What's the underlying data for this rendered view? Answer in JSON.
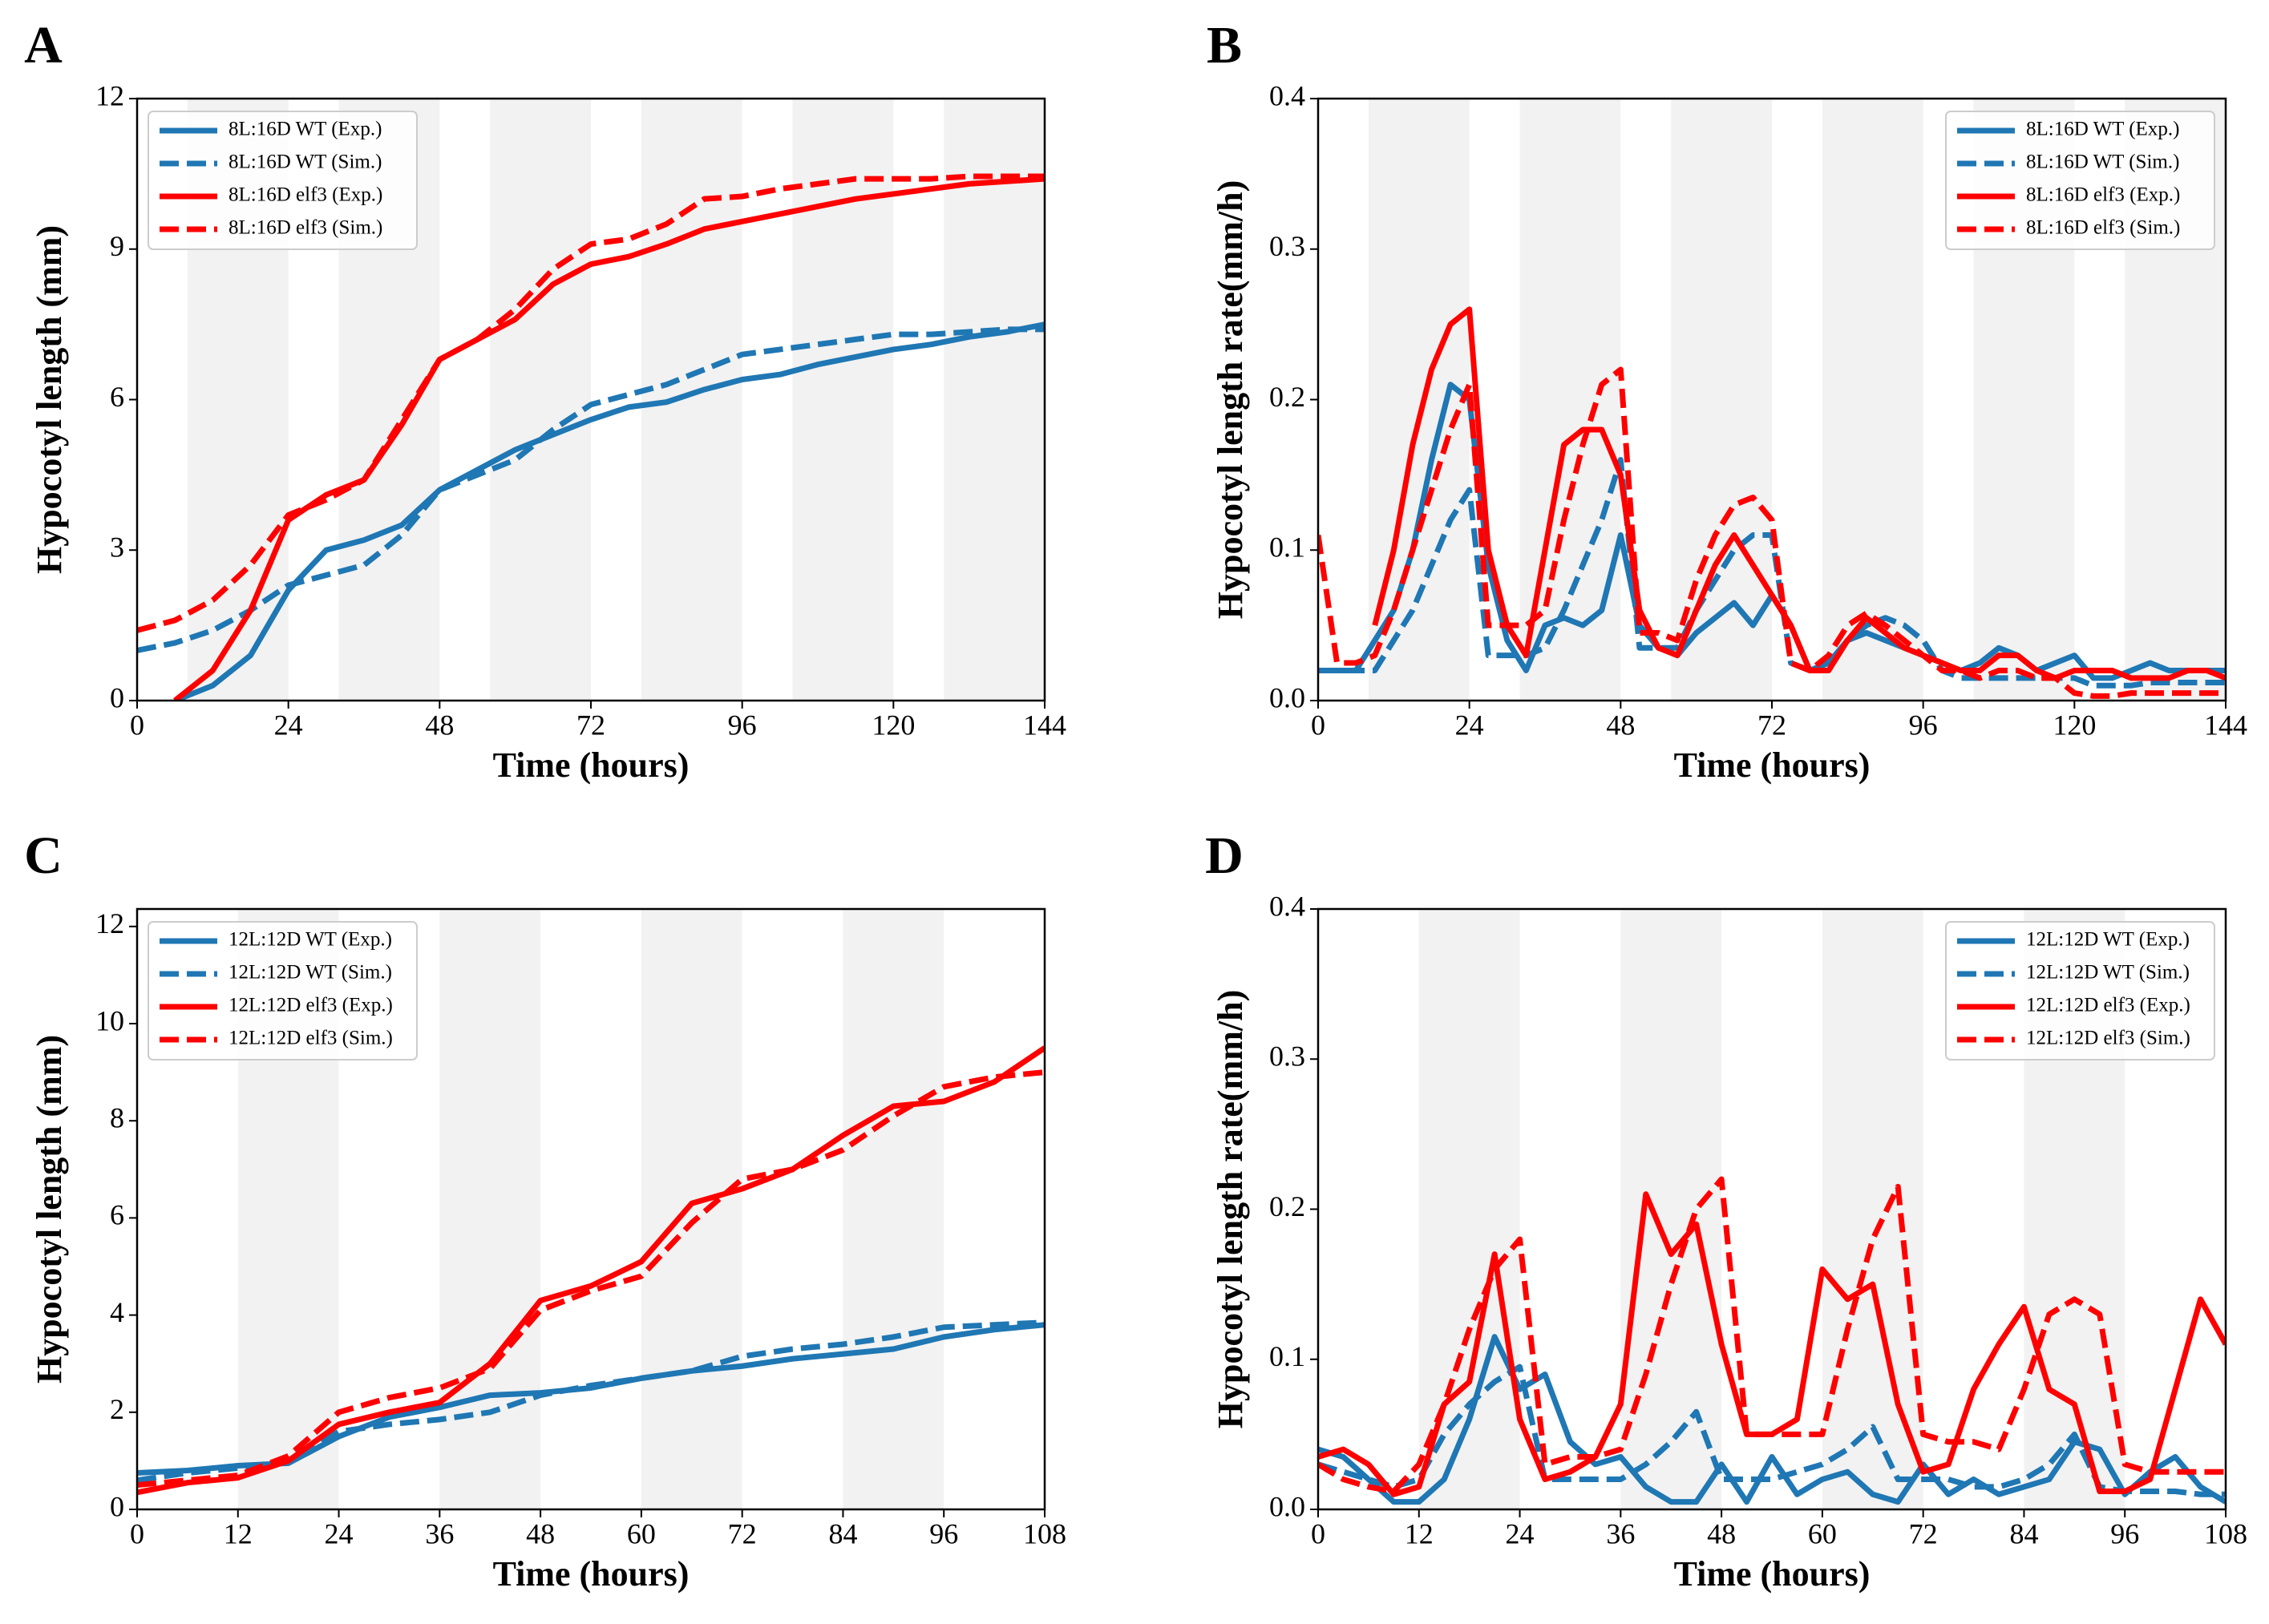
{
  "chart_data": [
    {
      "type": "line",
      "title": "A",
      "xlabel": "Time (hours)",
      "ylabel": "Hypocotyl length (mm)",
      "xlim": [
        0,
        144
      ],
      "xticks": [
        0,
        24,
        48,
        72,
        96,
        120,
        144
      ],
      "ylim": [
        0,
        12
      ],
      "yticks": [
        0,
        3,
        6,
        9,
        12
      ],
      "shaded": [
        [
          8,
          24
        ],
        [
          32,
          48
        ],
        [
          56,
          72
        ],
        [
          80,
          96
        ],
        [
          104,
          120
        ],
        [
          128,
          144
        ]
      ],
      "legend": "upper left",
      "x": [
        0,
        6,
        12,
        18,
        24,
        30,
        36,
        42,
        48,
        54,
        60,
        66,
        72,
        78,
        84,
        90,
        96,
        102,
        108,
        114,
        120,
        126,
        132,
        138,
        144
      ],
      "series": [
        {
          "name": "8L:16D WT (Exp.)",
          "color": "#1f77b4",
          "dashed": false,
          "values": [
            null,
            0.0,
            0.3,
            0.9,
            2.2,
            3.0,
            3.2,
            3.5,
            4.2,
            4.6,
            5.0,
            5.3,
            5.6,
            5.85,
            5.95,
            6.2,
            6.4,
            6.5,
            6.7,
            6.85,
            7.0,
            7.1,
            7.25,
            7.35,
            7.5
          ]
        },
        {
          "name": "8L:16D WT (Sim.)",
          "color": "#1f77b4",
          "dashed": true,
          "values": [
            1.0,
            1.15,
            1.4,
            1.8,
            2.3,
            2.5,
            2.7,
            3.3,
            4.2,
            4.5,
            4.8,
            5.4,
            5.9,
            6.1,
            6.3,
            6.6,
            6.9,
            7.0,
            7.1,
            7.2,
            7.3,
            7.3,
            7.35,
            7.4,
            7.4
          ]
        },
        {
          "name": "8L:16D elf3 (Exp.)",
          "color": "#ff0000",
          "dashed": false,
          "values": [
            null,
            0.0,
            0.6,
            1.8,
            3.6,
            4.1,
            4.4,
            5.5,
            6.8,
            7.2,
            7.6,
            8.3,
            8.7,
            8.85,
            9.1,
            9.4,
            9.55,
            9.7,
            9.85,
            10.0,
            10.1,
            10.2,
            10.3,
            10.35,
            10.4
          ]
        },
        {
          "name": "8L:16D elf3 (Sim.)",
          "color": "#ff0000",
          "dashed": true,
          "values": [
            1.4,
            1.6,
            2.0,
            2.7,
            3.7,
            4.0,
            4.4,
            5.6,
            6.8,
            7.2,
            7.8,
            8.6,
            9.1,
            9.2,
            9.5,
            10.0,
            10.05,
            10.2,
            10.3,
            10.4,
            10.4,
            10.4,
            10.45,
            10.45,
            10.45
          ]
        }
      ]
    },
    {
      "type": "line",
      "title": "B",
      "xlabel": "Time (hours)",
      "ylabel": "Hypocotyl length rate(mm/h)",
      "xlim": [
        0,
        144
      ],
      "xticks": [
        0,
        24,
        48,
        72,
        96,
        120,
        144
      ],
      "ylim": [
        0,
        0.4
      ],
      "yticks": [
        {
          "value": 0,
          "label": "0.0"
        },
        0.1,
        0.2,
        0.3,
        0.4
      ],
      "shaded": [
        [
          8,
          24
        ],
        [
          32,
          48
        ],
        [
          56,
          72
        ],
        [
          80,
          96
        ],
        [
          104,
          120
        ],
        [
          128,
          144
        ]
      ],
      "legend": "upper right",
      "x": [
        0,
        3,
        6,
        9,
        12,
        15,
        18,
        21,
        24,
        27,
        30,
        33,
        36,
        39,
        42,
        45,
        48,
        51,
        54,
        57,
        60,
        63,
        66,
        69,
        72,
        75,
        78,
        81,
        84,
        87,
        90,
        93,
        96,
        99,
        102,
        105,
        108,
        111,
        114,
        117,
        120,
        123,
        126,
        129,
        132,
        135,
        138,
        141,
        144
      ],
      "series": [
        {
          "name": "8L:16D WT (Exp.)",
          "color": "#1f77b4",
          "dashed": false,
          "values": [
            0.02,
            0.02,
            0.02,
            0.04,
            0.06,
            0.1,
            0.16,
            0.21,
            0.2,
            0.09,
            0.04,
            0.02,
            0.05,
            0.055,
            0.05,
            0.06,
            0.11,
            0.05,
            0.035,
            0.03,
            0.045,
            0.055,
            0.065,
            0.05,
            0.07,
            0.05,
            0.02,
            0.025,
            0.04,
            0.045,
            0.04,
            0.035,
            0.03,
            0.025,
            0.02,
            0.025,
            0.035,
            0.03,
            0.02,
            0.025,
            0.03,
            0.015,
            0.015,
            0.02,
            0.025,
            0.02,
            0.02,
            0.02,
            0.02
          ]
        },
        {
          "name": "8L:16D WT (Sim.)",
          "color": "#1f77b4",
          "dashed": true,
          "values": [
            0.02,
            0.02,
            0.02,
            0.02,
            0.04,
            0.06,
            0.09,
            0.12,
            0.14,
            0.03,
            0.03,
            0.03,
            0.035,
            0.06,
            0.09,
            0.12,
            0.16,
            0.035,
            0.035,
            0.035,
            0.06,
            0.08,
            0.1,
            0.11,
            0.11,
            0.025,
            0.02,
            0.025,
            0.04,
            0.05,
            0.055,
            0.05,
            0.04,
            0.02,
            0.015,
            0.015,
            0.015,
            0.015,
            0.015,
            0.015,
            0.015,
            0.01,
            0.01,
            0.01,
            0.012,
            0.012,
            0.012,
            0.012,
            0.012
          ]
        },
        {
          "name": "8L:16D elf3 (Exp.)",
          "color": "#ff0000",
          "dashed": false,
          "values": [
            null,
            null,
            null,
            0.05,
            0.1,
            0.17,
            0.22,
            0.25,
            0.26,
            0.1,
            0.05,
            0.03,
            0.1,
            0.17,
            0.18,
            0.18,
            0.15,
            0.06,
            0.035,
            0.03,
            0.06,
            0.09,
            0.11,
            0.09,
            0.07,
            0.05,
            0.02,
            0.02,
            0.04,
            0.055,
            0.045,
            0.035,
            0.03,
            0.025,
            0.02,
            0.02,
            0.03,
            0.03,
            0.02,
            0.015,
            0.02,
            0.02,
            0.02,
            0.015,
            0.015,
            0.015,
            0.02,
            0.02,
            0.015
          ]
        },
        {
          "name": "8L:16D elf3 (Sim.)",
          "color": "#ff0000",
          "dashed": true,
          "values": [
            0.11,
            0.025,
            0.025,
            0.03,
            0.06,
            0.1,
            0.14,
            0.18,
            0.21,
            0.05,
            0.05,
            0.05,
            0.06,
            0.12,
            0.17,
            0.21,
            0.22,
            0.045,
            0.045,
            0.04,
            0.08,
            0.11,
            0.13,
            0.135,
            0.12,
            0.025,
            0.02,
            0.03,
            0.05,
            0.058,
            0.05,
            0.04,
            0.03,
            0.02,
            0.02,
            0.015,
            0.02,
            0.02,
            0.015,
            0.015,
            0.005,
            0.003,
            0.003,
            0.005,
            0.005,
            0.005,
            0.005,
            0.005,
            0.005
          ]
        }
      ]
    },
    {
      "type": "line",
      "title": "C",
      "xlabel": "Time (hours)",
      "ylabel": "Hypocotyl length (mm)",
      "xlim": [
        0,
        108
      ],
      "xticks": [
        0,
        12,
        24,
        36,
        48,
        60,
        72,
        84,
        96,
        108
      ],
      "ylim": [
        0,
        12.36
      ],
      "yticks": [
        0,
        2,
        4,
        6,
        8,
        10,
        12
      ],
      "shaded": [
        [
          12,
          24
        ],
        [
          36,
          48
        ],
        [
          60,
          72
        ],
        [
          84,
          96
        ]
      ],
      "legend": "upper left",
      "x": [
        0,
        6,
        12,
        18,
        24,
        30,
        36,
        42,
        48,
        54,
        60,
        66,
        72,
        78,
        84,
        90,
        96,
        102,
        108
      ],
      "series": [
        {
          "name": "12L:12D WT (Exp.)",
          "color": "#1f77b4",
          "dashed": false,
          "values": [
            0.75,
            0.8,
            0.9,
            0.95,
            1.5,
            1.9,
            2.1,
            2.35,
            2.4,
            2.5,
            2.7,
            2.85,
            2.95,
            3.1,
            3.2,
            3.3,
            3.55,
            3.7,
            3.8
          ]
        },
        {
          "name": "12L:12D WT (Sim.)",
          "color": "#1f77b4",
          "dashed": true,
          "values": [
            0.6,
            0.75,
            0.85,
            1.0,
            1.6,
            1.75,
            1.85,
            2.0,
            2.35,
            2.55,
            2.7,
            2.85,
            3.15,
            3.3,
            3.4,
            3.55,
            3.75,
            3.8,
            3.85
          ]
        },
        {
          "name": "12L:12D elf3 (Exp.)",
          "color": "#ff0000",
          "dashed": false,
          "values": [
            0.35,
            0.55,
            0.65,
            1.0,
            1.75,
            2.0,
            2.2,
            3.0,
            4.3,
            4.6,
            5.1,
            6.3,
            6.6,
            7.0,
            7.7,
            8.3,
            8.4,
            8.8,
            9.5
          ]
        },
        {
          "name": "12L:12D elf3 (Sim.)",
          "color": "#ff0000",
          "dashed": true,
          "values": [
            0.5,
            0.6,
            0.7,
            1.1,
            2.0,
            2.3,
            2.5,
            2.9,
            4.1,
            4.5,
            4.8,
            5.9,
            6.8,
            7.0,
            7.4,
            8.1,
            8.7,
            8.9,
            9.0
          ]
        }
      ]
    },
    {
      "type": "line",
      "title": "D",
      "xlabel": "Time (hours)",
      "ylabel": "Hypocotyl length rate(mm/h)",
      "xlim": [
        0,
        108
      ],
      "xticks": [
        0,
        12,
        24,
        36,
        48,
        60,
        72,
        84,
        96,
        108
      ],
      "ylim": [
        0,
        0.4
      ],
      "yticks": [
        {
          "value": 0,
          "label": "0.0"
        },
        0.1,
        0.2,
        0.3,
        0.4
      ],
      "shaded": [
        [
          12,
          24
        ],
        [
          36,
          48
        ],
        [
          60,
          72
        ],
        [
          84,
          96
        ]
      ],
      "legend": "upper right",
      "x": [
        0,
        3,
        6,
        9,
        12,
        15,
        18,
        21,
        24,
        27,
        30,
        33,
        36,
        39,
        42,
        45,
        48,
        51,
        54,
        57,
        60,
        63,
        66,
        69,
        72,
        75,
        78,
        81,
        84,
        87,
        90,
        93,
        96,
        99,
        102,
        105,
        108
      ],
      "series": [
        {
          "name": "12L:12D WT (Exp.)",
          "color": "#1f77b4",
          "dashed": false,
          "values": [
            0.04,
            0.035,
            0.02,
            0.005,
            0.005,
            0.02,
            0.06,
            0.115,
            0.08,
            0.09,
            0.045,
            0.03,
            0.035,
            0.015,
            0.005,
            0.005,
            0.03,
            0.005,
            0.035,
            0.01,
            0.02,
            0.025,
            0.01,
            0.005,
            0.03,
            0.01,
            0.02,
            0.01,
            0.015,
            0.02,
            0.045,
            0.04,
            0.01,
            0.025,
            0.035,
            0.015,
            0.005
          ]
        },
        {
          "name": "12L:12D WT (Sim.)",
          "color": "#1f77b4",
          "dashed": true,
          "values": [
            0.03,
            0.025,
            0.02,
            0.015,
            0.02,
            0.05,
            0.07,
            0.085,
            0.095,
            0.02,
            0.02,
            0.02,
            0.02,
            0.03,
            0.045,
            0.065,
            0.02,
            0.02,
            0.02,
            0.025,
            0.03,
            0.04,
            0.055,
            0.02,
            0.02,
            0.02,
            0.015,
            0.015,
            0.02,
            0.03,
            0.05,
            0.015,
            0.012,
            0.012,
            0.012,
            0.01,
            0.01
          ]
        },
        {
          "name": "12L:12D elf3 (Exp.)",
          "color": "#ff0000",
          "dashed": false,
          "values": [
            0.035,
            0.04,
            0.03,
            0.01,
            0.015,
            0.07,
            0.085,
            0.17,
            0.06,
            0.02,
            0.025,
            0.035,
            0.07,
            0.21,
            0.17,
            0.19,
            0.11,
            0.05,
            0.05,
            0.06,
            0.16,
            0.14,
            0.15,
            0.07,
            0.025,
            0.03,
            0.08,
            0.11,
            0.135,
            0.08,
            0.07,
            0.012,
            0.012,
            0.02,
            0.08,
            0.14,
            0.11
          ]
        },
        {
          "name": "12L:12D elf3 (Sim.)",
          "color": "#ff0000",
          "dashed": true,
          "values": [
            0.03,
            0.02,
            0.015,
            0.012,
            0.03,
            0.07,
            0.12,
            0.16,
            0.18,
            0.03,
            0.035,
            0.035,
            0.04,
            0.09,
            0.15,
            0.2,
            0.22,
            0.05,
            0.05,
            0.05,
            0.05,
            0.12,
            0.18,
            0.215,
            0.05,
            0.045,
            0.045,
            0.04,
            0.08,
            0.13,
            0.14,
            0.13,
            0.03,
            0.025,
            0.025,
            0.025,
            0.025
          ]
        }
      ]
    }
  ]
}
